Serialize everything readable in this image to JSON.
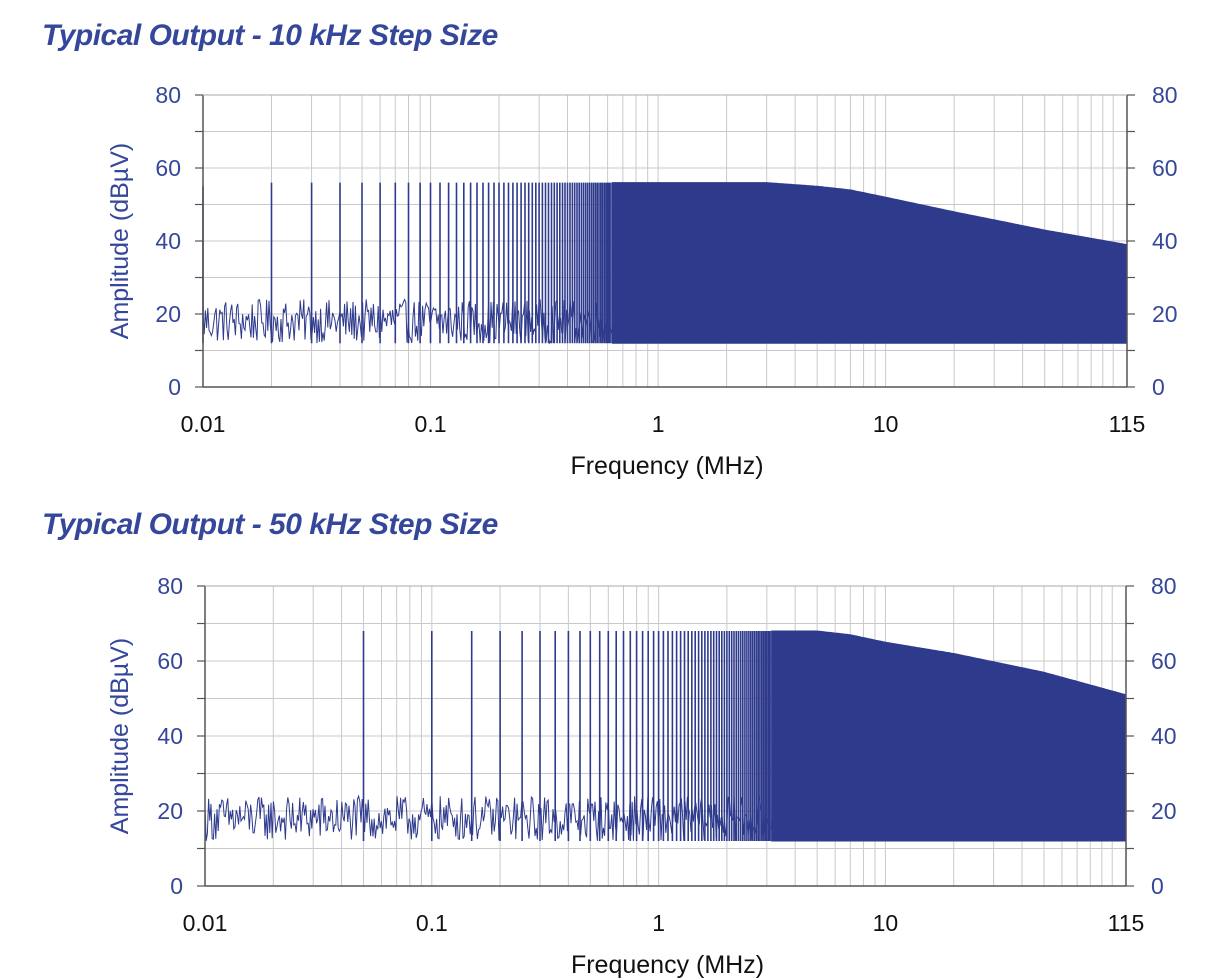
{
  "chart_data": [
    {
      "type": "line",
      "title": "Typical Output - 10 kHz Step Size",
      "xlabel": "Frequency (MHz)",
      "ylabel": "Amplitude (dBµV)",
      "x_scale": "log",
      "xlim": [
        0.01,
        115
      ],
      "ylim": [
        0,
        80
      ],
      "x_ticks": [
        "0.01",
        "0.1",
        "1",
        "10",
        "115"
      ],
      "x_tick_values": [
        0.01,
        0.1,
        1,
        10,
        115
      ],
      "y_ticks": [
        "0",
        "20",
        "40",
        "60",
        "80"
      ],
      "y_tick_values": [
        0,
        20,
        40,
        60,
        80
      ],
      "secondary_y_axis": true,
      "grid": true,
      "color": "#2e3a8c",
      "step_mhz": 0.01,
      "noise_floor": [
        12,
        24
      ],
      "series": [
        {
          "x": [
            0.01,
            0.02,
            0.05,
            0.1,
            0.2,
            0.5,
            0.6,
            1,
            2,
            3,
            5,
            7,
            10,
            20,
            50,
            115
          ],
          "y": [
            55,
            56,
            56,
            56,
            56,
            56,
            56,
            56,
            56,
            56,
            55,
            54,
            52,
            48,
            43,
            39
          ]
        }
      ]
    },
    {
      "type": "line",
      "title": "Typical Output - 50 kHz Step Size",
      "xlabel": "Frequency (MHz)",
      "ylabel": "Amplitude (dBµV)",
      "x_scale": "log",
      "xlim": [
        0.01,
        115
      ],
      "ylim": [
        0,
        80
      ],
      "x_ticks": [
        "0.01",
        "0.1",
        "1",
        "10",
        "115"
      ],
      "x_tick_values": [
        0.01,
        0.1,
        1,
        10,
        115
      ],
      "y_ticks": [
        "0",
        "20",
        "40",
        "60",
        "80"
      ],
      "y_tick_values": [
        0,
        20,
        40,
        60,
        80
      ],
      "secondary_y_axis": true,
      "grid": true,
      "color": "#2e3a8c",
      "step_mhz": 0.05,
      "noise_floor": [
        12,
        24
      ],
      "series": [
        {
          "x": [
            0.05,
            0.1,
            0.2,
            0.5,
            1,
            2,
            3,
            4,
            5,
            7,
            10,
            20,
            50,
            115
          ],
          "y": [
            68,
            68,
            68,
            68,
            68,
            68,
            68,
            68,
            68,
            67,
            65,
            62,
            57,
            51
          ]
        }
      ]
    }
  ]
}
